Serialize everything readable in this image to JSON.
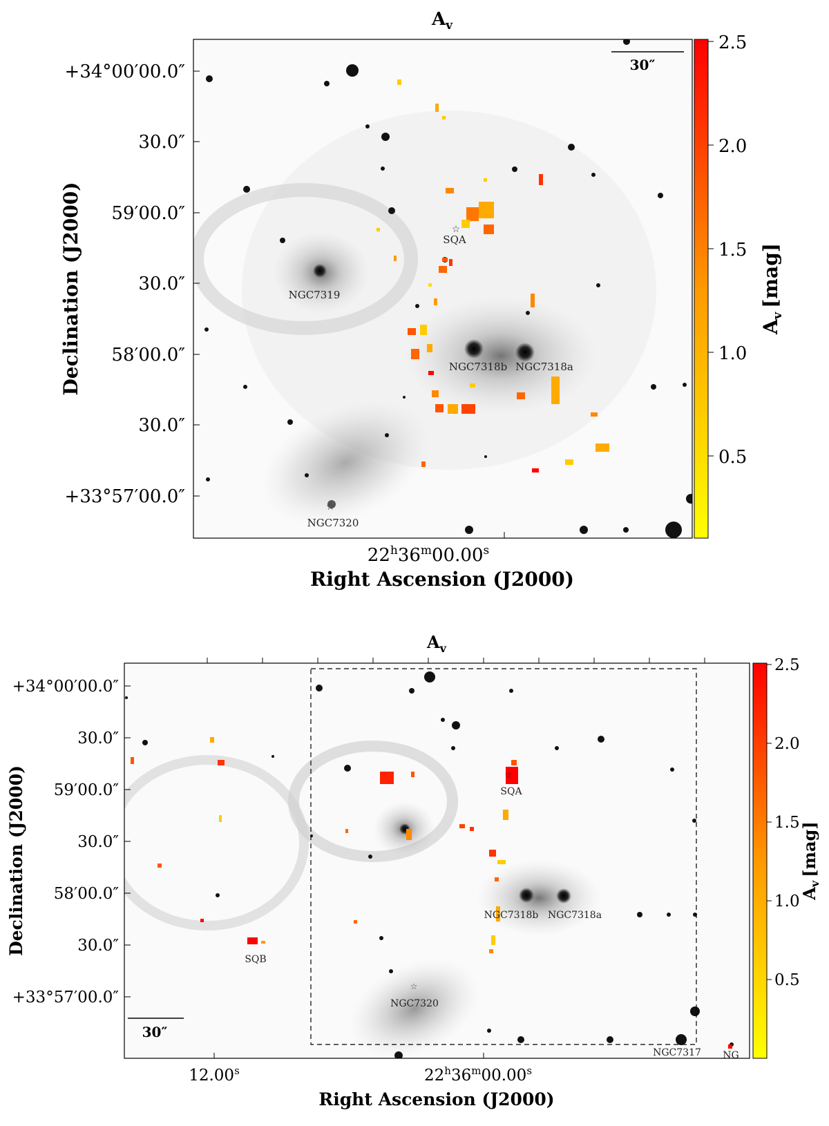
{
  "top_panel": {
    "title": "A",
    "title_sub": "v",
    "x_axis_label": "Right Ascension (J2000)",
    "y_axis_label": "Declination (J2000)",
    "x_tick": {
      "hours": "22",
      "minutes": "36",
      "seconds": "00.00",
      "h": "h",
      "m": "m",
      "s": "s"
    },
    "y_ticks": [
      "+34°00′00.0″",
      "30.0″",
      "59′00.0″",
      "30.0″",
      "58′00.0″",
      "30.0″",
      "+33°57′00.0″"
    ],
    "scale_bar_label": "30″",
    "colorbar": {
      "label_main": "A",
      "label_sub": "v",
      "label_unit": "[mag]",
      "ticks": [
        "2.5",
        "2.0",
        "1.5",
        "1.0",
        "0.5"
      ],
      "color_low": "#ffff00",
      "color_high": "#ff0000"
    },
    "source_labels": [
      "SQA",
      "NGC7319",
      "NGC7318b",
      "NGC7318a",
      "NGC7320"
    ]
  },
  "bottom_panel": {
    "title": "A",
    "title_sub": "v",
    "x_axis_label": "Right Ascension (J2000)",
    "y_axis_label": "Declination (J2000)",
    "x_ticks": {
      "left_seconds": "12.00",
      "s": "s",
      "hours": "22",
      "minutes": "36",
      "seconds": "00.00",
      "h": "h",
      "m": "m"
    },
    "y_ticks": [
      "+34°00′00.0″",
      "30.0″",
      "59′00.0″",
      "30.0″",
      "58′00.0″",
      "30.0″",
      "+33°57′00.0″"
    ],
    "scale_bar_label": "30″",
    "colorbar": {
      "label_main": "A",
      "label_sub": "v",
      "label_unit": "[mag]",
      "ticks": [
        "2.5",
        "2.0",
        "1.5",
        "1.0",
        "0.5"
      ],
      "color_low": "#ffff00",
      "color_high": "#ff0000"
    },
    "source_labels": [
      "SQA",
      "NGC7318b",
      "NGC7318a",
      "SQB",
      "NGC7320",
      "NGC7317",
      "NG"
    ]
  }
}
